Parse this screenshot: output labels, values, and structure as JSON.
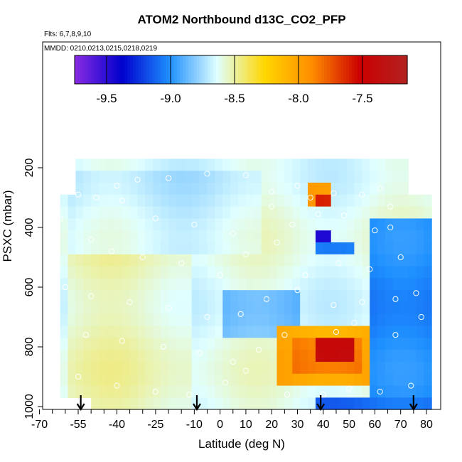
{
  "chart_data": {
    "type": "heatmap",
    "title": "ATOM2 Northbound d13C_CO2_PFP",
    "subtitle_flights": "Flts: 6,7,8,9,10",
    "subtitle_dates": "MMDD: 0210,0213,0215,0218,0219",
    "xlabel": "Latitude (deg N)",
    "ylabel": "PSXC (mbar)",
    "xlim": [
      -70,
      82
    ],
    "ylim": [
      1010,
      150
    ],
    "x_ticks": [
      "-70",
      "-55",
      "-40",
      "-25",
      "-10",
      "0",
      "10",
      "20",
      "30",
      "40",
      "50",
      "60",
      "70",
      "80"
    ],
    "x_tick_values": [
      -70,
      -55,
      -40,
      -25,
      -10,
      0,
      10,
      20,
      30,
      40,
      50,
      60,
      70,
      80
    ],
    "x_minor_ticks": [
      -65,
      -60,
      -50,
      -45,
      -35,
      -30,
      -20,
      -15,
      -5,
      5,
      15,
      25,
      35,
      45,
      55,
      65,
      75
    ],
    "y_ticks": [
      "200",
      "400",
      "600",
      "800",
      "1000"
    ],
    "y_tick_values": [
      200,
      400,
      600,
      800,
      1000
    ],
    "colorbar": {
      "ticks": [
        "-9.5",
        "-9.0",
        "-8.5",
        "-8.0",
        "-7.5"
      ],
      "tick_values": [
        -9.5,
        -9.0,
        -8.5,
        -8.0,
        -7.5
      ],
      "range": [
        -9.75,
        -7.15
      ],
      "colors": [
        "#8a2be2",
        "#0000cd",
        "#1e90ff",
        "#e0ffff",
        "#ffd700",
        "#ff8c00",
        "#cc0000",
        "#b22222"
      ]
    },
    "arrows_lat": [
      -54,
      -9,
      39,
      75
    ],
    "value_grid": {
      "pressure_bands": [
        [
          170,
          210
        ],
        [
          210,
          250
        ],
        [
          250,
          290
        ],
        [
          290,
          330
        ],
        [
          330,
          370
        ],
        [
          370,
          410
        ],
        [
          410,
          450
        ],
        [
          450,
          490
        ],
        [
          490,
          530
        ],
        [
          530,
          570
        ],
        [
          570,
          610
        ],
        [
          610,
          650
        ],
        [
          650,
          690
        ],
        [
          690,
          730
        ],
        [
          730,
          770
        ],
        [
          770,
          810
        ],
        [
          810,
          850
        ],
        [
          850,
          890
        ],
        [
          890,
          930
        ],
        [
          930,
          970
        ],
        [
          970,
          1010
        ]
      ],
      "background_value": -8.62,
      "features": [
        {
          "name": "southern-upper",
          "lat": [
            -60,
            15
          ],
          "p": [
            200,
            480
          ],
          "value": -8.68
        },
        {
          "name": "southern-lower",
          "lat": [
            -60,
            -10
          ],
          "p": [
            500,
            1000
          ],
          "value": -8.55
        },
        {
          "name": "tropics-mid",
          "lat": [
            0,
            30
          ],
          "p": [
            600,
            780
          ],
          "value": -8.85
        },
        {
          "name": "north-low",
          "lat": [
            58,
            82
          ],
          "p": [
            380,
            1010
          ],
          "value": -9.05
        },
        {
          "name": "north-surface",
          "lat": [
            38,
            82
          ],
          "p": [
            960,
            1010
          ],
          "value": -9.1
        },
        {
          "name": "plume-upper",
          "lat": [
            34,
            44
          ],
          "p": [
            270,
            340
          ],
          "value": -7.9
        },
        {
          "name": "plume-upper-core",
          "lat": [
            38,
            42
          ],
          "p": [
            280,
            340
          ],
          "value": -7.55
        },
        {
          "name": "plume-dark",
          "lat": [
            38,
            44
          ],
          "p": [
            410,
            450
          ],
          "value": -9.45
        },
        {
          "name": "plume-dark2",
          "lat": [
            38,
            52
          ],
          "p": [
            450,
            490
          ],
          "value": -9.05
        },
        {
          "name": "lower-plume-outer",
          "lat": [
            22,
            58
          ],
          "p": [
            730,
            930
          ],
          "value": -8.05
        },
        {
          "name": "lower-plume-mid",
          "lat": [
            28,
            55
          ],
          "p": [
            760,
            900
          ],
          "value": -7.85
        },
        {
          "name": "lower-plume-core",
          "lat": [
            38,
            53
          ],
          "p": [
            780,
            860
          ],
          "value": -7.4
        }
      ]
    },
    "sample_points": [
      [
        -40,
        260
      ],
      [
        -32,
        240
      ],
      [
        -20,
        235
      ],
      [
        -5,
        220
      ],
      [
        10,
        225
      ],
      [
        20,
        280
      ],
      [
        30,
        260
      ],
      [
        35,
        300
      ],
      [
        44,
        285
      ],
      [
        55,
        290
      ],
      [
        62,
        270
      ],
      [
        66,
        330
      ],
      [
        -55,
        290
      ],
      [
        -48,
        300
      ],
      [
        -38,
        310
      ],
      [
        -25,
        370
      ],
      [
        -10,
        390
      ],
      [
        5,
        420
      ],
      [
        20,
        330
      ],
      [
        28,
        390
      ],
      [
        38,
        355
      ],
      [
        48,
        360
      ],
      [
        60,
        410
      ],
      [
        66,
        400
      ],
      [
        -62,
        370
      ],
      [
        -50,
        440
      ],
      [
        -42,
        480
      ],
      [
        -30,
        500
      ],
      [
        -15,
        520
      ],
      [
        0,
        560
      ],
      [
        10,
        490
      ],
      [
        22,
        450
      ],
      [
        33,
        560
      ],
      [
        46,
        520
      ],
      [
        58,
        540
      ],
      [
        70,
        500
      ],
      [
        -60,
        600
      ],
      [
        -50,
        630
      ],
      [
        -35,
        650
      ],
      [
        -20,
        670
      ],
      [
        -5,
        700
      ],
      [
        8,
        690
      ],
      [
        18,
        640
      ],
      [
        30,
        610
      ],
      [
        44,
        660
      ],
      [
        55,
        650
      ],
      [
        68,
        640
      ],
      [
        76,
        620
      ],
      [
        -64,
        740
      ],
      [
        -52,
        760
      ],
      [
        -38,
        780
      ],
      [
        -22,
        800
      ],
      [
        -8,
        820
      ],
      [
        5,
        850
      ],
      [
        15,
        810
      ],
      [
        25,
        760
      ],
      [
        45,
        750
      ],
      [
        52,
        720
      ],
      [
        68,
        760
      ],
      [
        78,
        700
      ],
      [
        -66,
        850
      ],
      [
        -55,
        900
      ],
      [
        -40,
        930
      ],
      [
        -25,
        950
      ],
      [
        -12,
        960
      ],
      [
        2,
        920
      ],
      [
        10,
        880
      ],
      [
        26,
        960
      ],
      [
        40,
        960
      ],
      [
        50,
        940
      ],
      [
        62,
        950
      ],
      [
        74,
        930
      ]
    ]
  }
}
